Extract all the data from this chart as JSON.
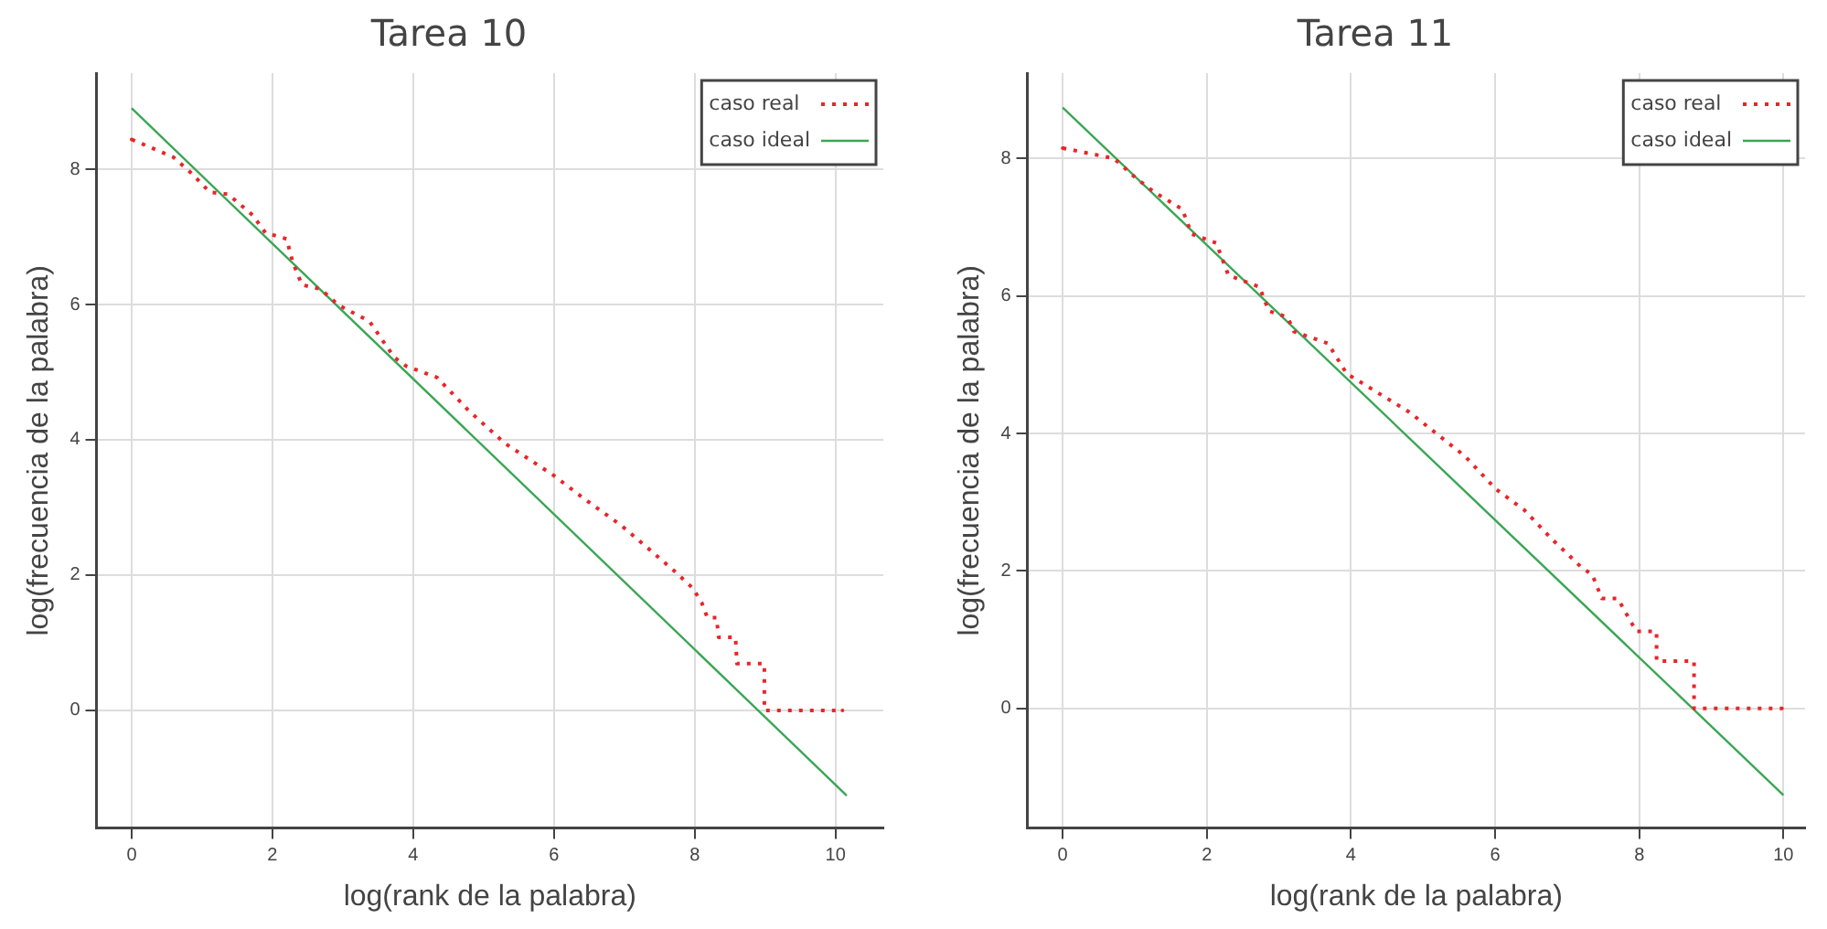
{
  "chart_data": [
    {
      "type": "line",
      "title": "Tarea 10",
      "xlabel": "log(rank de la palabra)",
      "ylabel": "log(frecuencia de la palabra)",
      "xlim": [
        -0.5,
        10.68
      ],
      "ylim": [
        -1.74,
        9.42
      ],
      "xticks": [
        0,
        2,
        4,
        6,
        8,
        10
      ],
      "yticks": [
        0,
        2,
        4,
        6,
        8
      ],
      "grid": true,
      "legend": "top right",
      "marker": "none",
      "series": [
        {
          "name": "caso real",
          "color": "#e8262a",
          "line_style": "dotted",
          "x": [
            0,
            0.59,
            0.85,
            1.11,
            1.37,
            1.72,
            1.9,
            2.2,
            2.29,
            2.42,
            2.68,
            2.94,
            3.38,
            3.55,
            3.73,
            3.9,
            4.34,
            4.78,
            5.3,
            6.0,
            6.44,
            6.96,
            7.31,
            7.7,
            7.97,
            8.1,
            8.18,
            8.31,
            8.34,
            8.58,
            8.6,
            8.99,
            8.99,
            10.1
          ],
          "values": [
            8.44,
            8.18,
            7.94,
            7.66,
            7.63,
            7.32,
            7.06,
            6.97,
            6.62,
            6.29,
            6.23,
            5.99,
            5.75,
            5.49,
            5.22,
            5.09,
            4.92,
            4.44,
            3.95,
            3.47,
            3.12,
            2.73,
            2.42,
            2.07,
            1.81,
            1.59,
            1.37,
            1.37,
            1.08,
            1.08,
            0.69,
            0.69,
            0,
            0
          ]
        },
        {
          "name": "caso ideal",
          "color": "#3aa655",
          "line_style": "solid",
          "x": [
            0,
            10.16
          ],
          "values": [
            8.9,
            -1.26
          ]
        }
      ]
    },
    {
      "type": "line",
      "title": "Tarea 11",
      "xlabel": "log(rank de la palabra)",
      "ylabel": "log(frecuencia de la palabra)",
      "xlim": [
        -0.49,
        10.3
      ],
      "ylim": [
        -1.74,
        9.24
      ],
      "xticks": [
        0,
        2,
        4,
        6,
        8,
        10
      ],
      "yticks": [
        0,
        2,
        4,
        6,
        8
      ],
      "grid": true,
      "legend": "top right",
      "marker": "none",
      "series": [
        {
          "name": "caso real",
          "color": "#e8262a",
          "line_style": "dotted",
          "x": [
            0,
            0.71,
            1.01,
            1.27,
            1.66,
            1.79,
            2.13,
            2.3,
            2.73,
            2.86,
            3.12,
            3.21,
            3.68,
            3.94,
            4.81,
            5.58,
            6.01,
            6.4,
            6.79,
            7.18,
            7.35,
            7.48,
            7.7,
            7.96,
            8.24,
            8.24,
            8.76,
            8.76,
            9.98
          ],
          "values": [
            8.15,
            8.0,
            7.72,
            7.51,
            7.26,
            6.9,
            6.77,
            6.3,
            6.13,
            5.78,
            5.69,
            5.48,
            5.31,
            4.87,
            4.31,
            3.67,
            3.19,
            2.89,
            2.46,
            2.07,
            1.94,
            1.6,
            1.6,
            1.12,
            1.12,
            0.69,
            0.69,
            0,
            0
          ]
        },
        {
          "name": "caso ideal",
          "color": "#3aa655",
          "line_style": "solid",
          "x": [
            0,
            10
          ],
          "values": [
            8.74,
            -1.26
          ]
        }
      ]
    }
  ]
}
